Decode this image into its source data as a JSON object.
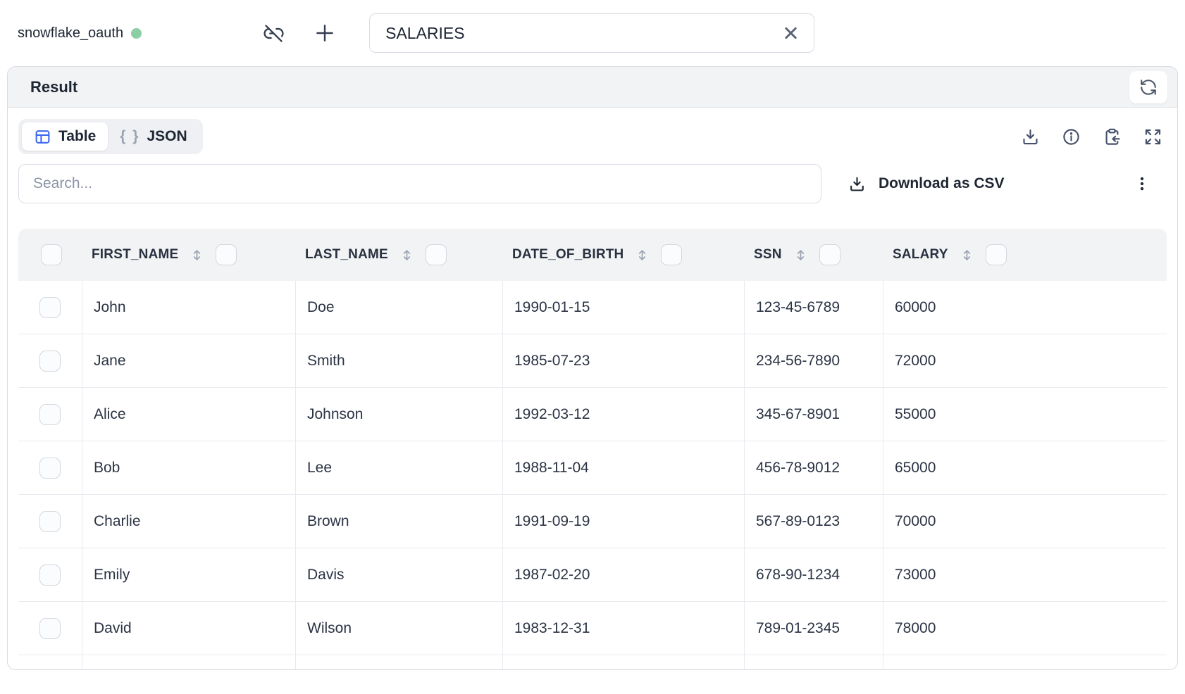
{
  "topbar": {
    "connection_name": "snowflake_oauth",
    "connection_status_color": "#8ccfa4",
    "table_input_value": "SALARIES"
  },
  "result_panel": {
    "title": "Result",
    "view_tabs": {
      "table_label": "Table",
      "json_label": "JSON",
      "json_glyph": "{ }",
      "active_tab": "Table"
    },
    "search": {
      "placeholder": "Search...",
      "value": ""
    },
    "download_csv_label": "Download as CSV",
    "table": {
      "columns": [
        "FIRST_NAME",
        "LAST_NAME",
        "DATE_OF_BIRTH",
        "SSN",
        "SALARY"
      ],
      "rows": [
        [
          "John",
          "Doe",
          "1990-01-15",
          "123-45-6789",
          "60000"
        ],
        [
          "Jane",
          "Smith",
          "1985-07-23",
          "234-56-7890",
          "72000"
        ],
        [
          "Alice",
          "Johnson",
          "1992-03-12",
          "345-67-8901",
          "55000"
        ],
        [
          "Bob",
          "Lee",
          "1988-11-04",
          "456-78-9012",
          "65000"
        ],
        [
          "Charlie",
          "Brown",
          "1991-09-19",
          "567-89-0123",
          "70000"
        ],
        [
          "Emily",
          "Davis",
          "1987-02-20",
          "678-90-1234",
          "73000"
        ],
        [
          "David",
          "Wilson",
          "1983-12-31",
          "789-01-2345",
          "78000"
        ]
      ]
    }
  },
  "icons": {
    "unlink": "link-slash",
    "add": "plus",
    "clear": "x",
    "refresh": "refresh-cw",
    "table_view": "table-grid",
    "json_view": "curly-braces",
    "download": "download-tray",
    "info": "info-circle",
    "copy_result": "clipboard-arrow",
    "expand": "expand-arrows",
    "menu": "kebab-vertical-dots",
    "sort": "up-down-arrow"
  },
  "colors": {
    "accent_blue": "#3e68f0",
    "status_green": "#8ccfa4",
    "header_gray": "#f1f3f5"
  }
}
